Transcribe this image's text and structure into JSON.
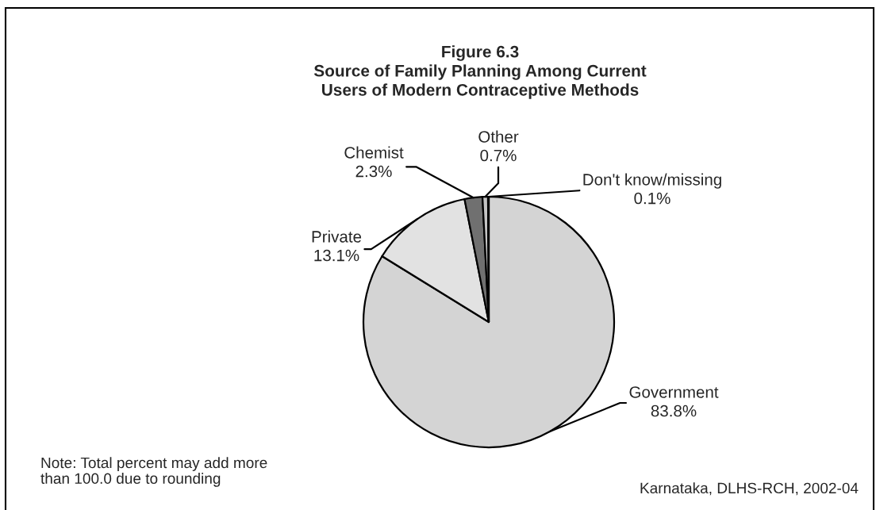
{
  "chart_data": {
    "type": "pie",
    "title": "Figure 6.3\nSource of Family Planning Among Current\nUsers of Modern Contraceptive Methods",
    "categories": [
      "Government",
      "Private",
      "Chemist",
      "Other",
      "Don't know/missing"
    ],
    "values": [
      83.8,
      13.1,
      2.3,
      0.7,
      0.1
    ],
    "value_labels": [
      "83.8%",
      "13.1%",
      "2.3%",
      "0.7%",
      "0.1%"
    ],
    "colors": [
      "#d4d4d4",
      "#e2e2e2",
      "#707070",
      "#c4c4c4",
      "#ffffff"
    ],
    "annotations": [
      "Note: Total percent may add more\nthan 100.0 due to rounding",
      "Karnataka, DLHS-RCH, 2002-04"
    ]
  }
}
